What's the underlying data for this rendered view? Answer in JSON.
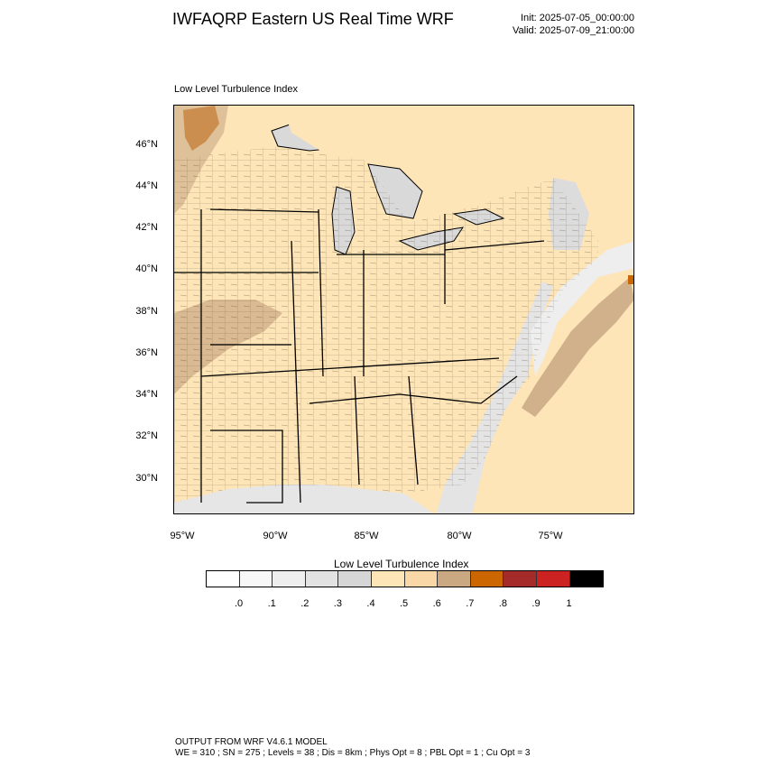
{
  "header": {
    "title": "IWFAQRP Eastern US Real Time WRF",
    "init": "Init: 2025-07-05_00:00:00",
    "valid": "Valid: 2025-07-09_21:00:00"
  },
  "plot": {
    "label": "Low Level Turbulence Index",
    "lat_labels": [
      "46°N",
      "44°N",
      "42°N",
      "40°N",
      "38°N",
      "36°N",
      "34°N",
      "32°N",
      "30°N"
    ],
    "lon_labels": [
      "95°W",
      "90°W",
      "85°W",
      "80°W",
      "75°W"
    ]
  },
  "colorbar": {
    "title": "Low Level Turbulence Index",
    "colors": [
      "#ffffff",
      "#f7f7f7",
      "#eeeeee",
      "#e2e2e2",
      "#d6d6d6",
      "#fde5b8",
      "#f9d7a6",
      "#c9a882",
      "#cc6600",
      "#a52a2a",
      "#cc2222",
      "#000000"
    ],
    "labels": [
      ".0",
      ".1",
      ".2",
      ".3",
      ".4",
      ".5",
      ".6",
      ".7",
      ".8",
      ".9",
      "1"
    ]
  },
  "footer": {
    "line1": "OUTPUT FROM WRF V4.6.1 MODEL",
    "line2": "WE = 310 ; SN = 275 ; Levels = 38 ; Dis = 8km ; Phys Opt = 8 ; PBL Opt = 1 ; Cu Opt = 3"
  }
}
